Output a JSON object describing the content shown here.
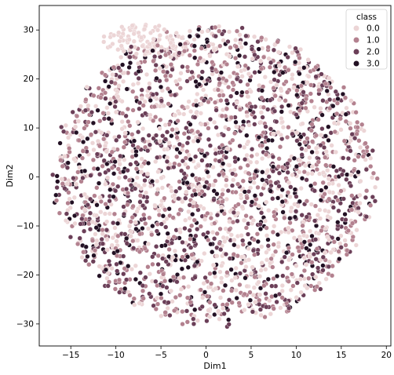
{
  "chart_data": {
    "type": "scatter",
    "title": "",
    "xlabel": "Dim1",
    "ylabel": "Dim2",
    "xlim": [
      -18.5,
      20.5
    ],
    "ylim": [
      -34.5,
      35.0
    ],
    "xticks": [
      -15,
      -10,
      -5,
      0,
      5,
      10,
      15,
      20
    ],
    "yticks": [
      -30,
      -20,
      -10,
      0,
      10,
      20,
      30
    ],
    "grid": false,
    "legend": {
      "title": "class",
      "placement": "top-right",
      "entries": [
        "0.0",
        "1.0",
        "2.0",
        "3.0"
      ]
    },
    "series": [
      {
        "name": "0.0",
        "color": "#ecd5d6"
      },
      {
        "name": "1.0",
        "color": "#b3818f"
      },
      {
        "name": "2.0",
        "color": "#6b3f58"
      },
      {
        "name": "3.0",
        "color": "#221023"
      }
    ],
    "cloud": {
      "description_points": "dense point cloud, roughly circular",
      "center": [
        1.0,
        0.0
      ],
      "radius_x": 17.5,
      "radius_y": 30.0,
      "extra_cluster_class0": {
        "center": [
          -7.0,
          28.0
        ]
      }
    }
  }
}
